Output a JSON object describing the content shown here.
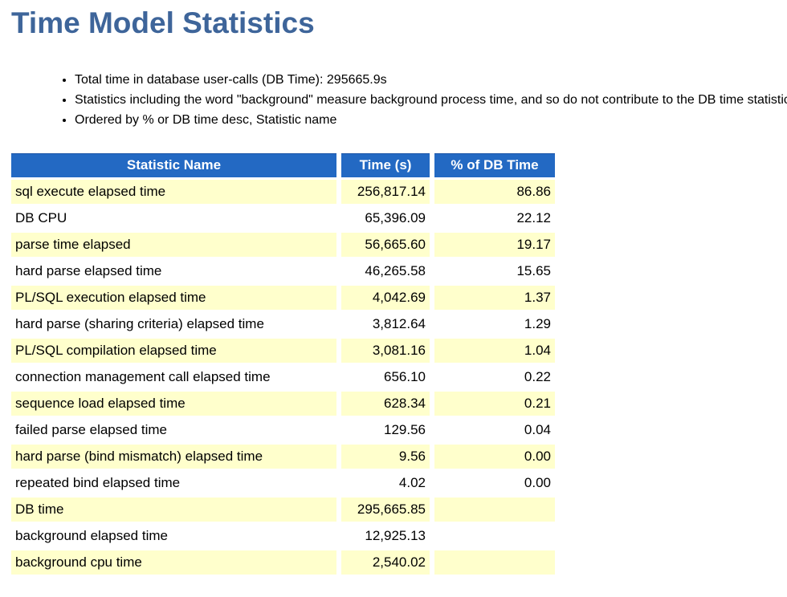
{
  "page": {
    "title": "Time Model Statistics"
  },
  "notes": [
    "Total time in database user-calls (DB Time): 295665.9s",
    "Statistics including the word \"background\" measure background process time, and so do not contribute to the DB time statistic",
    "Ordered by % or DB time desc, Statistic name"
  ],
  "colors": {
    "title_text": "#3E659A",
    "header_bg": "#2369C3",
    "header_text": "#FFFFFF",
    "row_stripe": "#FFFFCC",
    "row_plain": "#FFFFFF"
  },
  "table": {
    "columns": [
      "Statistic Name",
      "Time (s)",
      "% of DB Time"
    ],
    "rows": [
      {
        "name": "sql execute elapsed time",
        "time": "256,817.14",
        "pct": "86.86"
      },
      {
        "name": "DB CPU",
        "time": "65,396.09",
        "pct": "22.12"
      },
      {
        "name": "parse time elapsed",
        "time": "56,665.60",
        "pct": "19.17"
      },
      {
        "name": "hard parse elapsed time",
        "time": "46,265.58",
        "pct": "15.65"
      },
      {
        "name": "PL/SQL execution elapsed time",
        "time": "4,042.69",
        "pct": "1.37"
      },
      {
        "name": "hard parse (sharing criteria) elapsed time",
        "time": "3,812.64",
        "pct": "1.29"
      },
      {
        "name": "PL/SQL compilation elapsed time",
        "time": "3,081.16",
        "pct": "1.04"
      },
      {
        "name": "connection management call elapsed time",
        "time": "656.10",
        "pct": "0.22"
      },
      {
        "name": "sequence load elapsed time",
        "time": "628.34",
        "pct": "0.21"
      },
      {
        "name": "failed parse elapsed time",
        "time": "129.56",
        "pct": "0.04"
      },
      {
        "name": "hard parse (bind mismatch) elapsed time",
        "time": "9.56",
        "pct": "0.00"
      },
      {
        "name": "repeated bind elapsed time",
        "time": "4.02",
        "pct": "0.00"
      },
      {
        "name": "DB time",
        "time": "295,665.85",
        "pct": ""
      },
      {
        "name": "background elapsed time",
        "time": "12,925.13",
        "pct": ""
      },
      {
        "name": "background cpu time",
        "time": "2,540.02",
        "pct": ""
      }
    ]
  }
}
